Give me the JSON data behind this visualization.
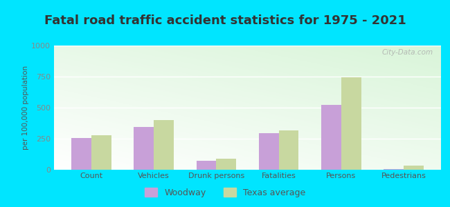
{
  "title": "Fatal road traffic accident statistics for 1975 - 2021",
  "categories": [
    "Count",
    "Vehicles",
    "Drunk persons",
    "Fatalities",
    "Persons",
    "Pedestrians"
  ],
  "woodway": [
    255,
    345,
    75,
    295,
    520,
    8
  ],
  "texas_avg": [
    280,
    400,
    90,
    315,
    745,
    35
  ],
  "woodway_color": "#c8a0d8",
  "texas_color": "#c8d8a0",
  "ylabel": "per 100,000 population",
  "ylim": [
    0,
    1000
  ],
  "yticks": [
    0,
    250,
    500,
    750,
    1000
  ],
  "outer_background": "#00e5ff",
  "title_fontsize": 13,
  "bar_width": 0.32,
  "watermark": "City-Data.com",
  "tick_color": "#888888",
  "label_color": "#555555"
}
